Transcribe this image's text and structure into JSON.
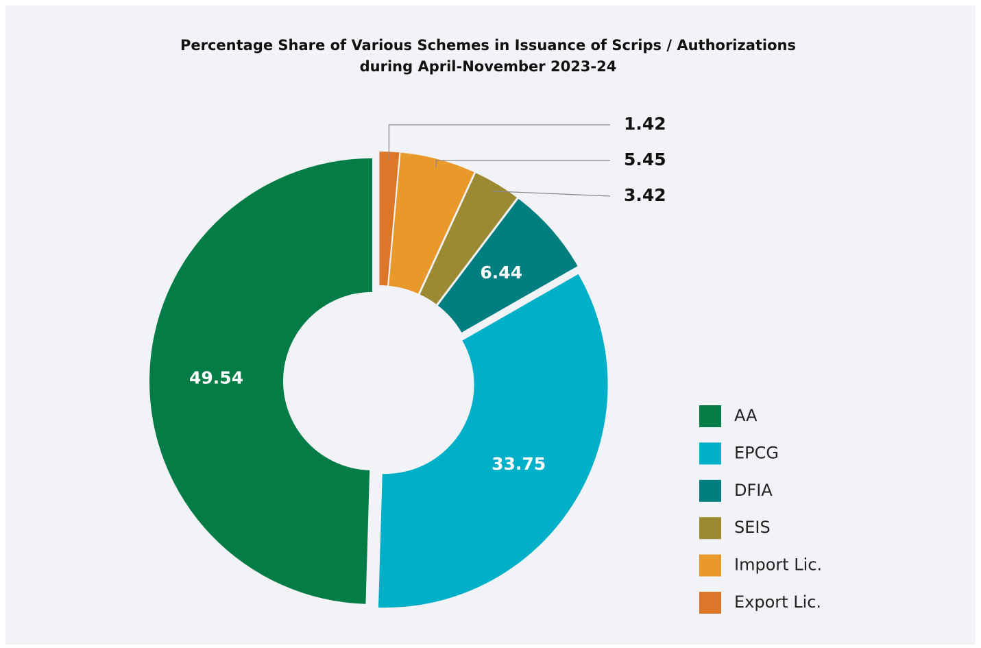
{
  "chart_data": {
    "type": "donut",
    "title": "Percentage Share of Various Schemes in Issuance of Scrips / Authorizations",
    "subtitle": "during April-November 2023-24",
    "categories": [
      "AA",
      "EPCG",
      "DFIA",
      "SEIS",
      "Import Lic.",
      "Export Lic."
    ],
    "values": [
      49.54,
      33.75,
      6.44,
      3.42,
      5.45,
      1.42
    ],
    "colors": [
      "#037c46",
      "#00b0c8",
      "#007e80",
      "#9c8a33",
      "#e9982a",
      "#dc772a"
    ],
    "legend": "right"
  }
}
